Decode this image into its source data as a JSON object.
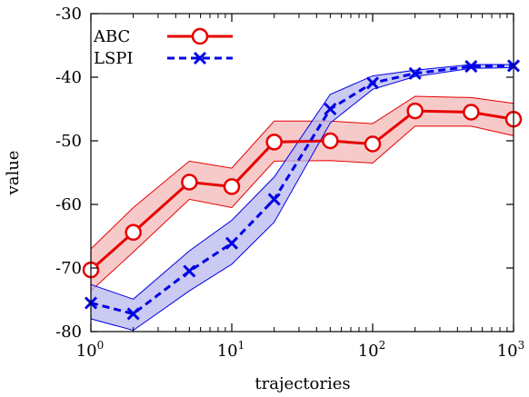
{
  "chart_data": {
    "type": "line",
    "title": "",
    "xlabel": "trajectories",
    "ylabel": "value",
    "xscale": "log",
    "xlim": [
      1,
      1000
    ],
    "ylim": [
      -80,
      -30
    ],
    "grid": false,
    "legend_placement": "top-left",
    "x_ticks": [
      {
        "base": "10",
        "exp": "0"
      },
      {
        "base": "10",
        "exp": "1"
      },
      {
        "base": "10",
        "exp": "2"
      },
      {
        "base": "10",
        "exp": "3"
      }
    ],
    "y_ticks": [
      "-30",
      "-40",
      "-50",
      "-60",
      "-70",
      "-80"
    ],
    "y_tick_values": [
      -30,
      -40,
      -50,
      -60,
      -70,
      -80
    ],
    "x": [
      1,
      2,
      5,
      10,
      20,
      50,
      100,
      200,
      500,
      1000
    ],
    "series": [
      {
        "name": "ABC",
        "color": "#e60000",
        "band_color": "#f4b8b8",
        "marker": "circle",
        "line_style": "solid",
        "values": [
          -70.3,
          -64.4,
          -56.5,
          -57.2,
          -50.2,
          -50.0,
          -50.5,
          -45.3,
          -45.5,
          -46.6
        ],
        "upper": [
          -67.0,
          -60.5,
          -53.2,
          -54.3,
          -46.9,
          -46.9,
          -47.3,
          -43.0,
          -43.2,
          -44.1
        ],
        "lower": [
          -73.6,
          -67.5,
          -59.2,
          -60.5,
          -53.2,
          -53.1,
          -53.5,
          -47.7,
          -47.7,
          -49.2
        ]
      },
      {
        "name": "LSPI",
        "color": "#0000e6",
        "band_color": "#b8b8ee",
        "marker": "x",
        "line_style": "dashed",
        "values": [
          -75.5,
          -77.2,
          -70.5,
          -66.1,
          -59.2,
          -45.0,
          -40.9,
          -39.4,
          -38.3,
          -38.2
        ],
        "upper": [
          -72.6,
          -74.9,
          -67.3,
          -62.5,
          -55.7,
          -42.7,
          -39.8,
          -38.9,
          -38.0,
          -38.0
        ],
        "lower": [
          -78.0,
          -79.8,
          -73.6,
          -69.4,
          -62.8,
          -47.2,
          -41.9,
          -39.9,
          -38.6,
          -38.5
        ]
      }
    ]
  }
}
